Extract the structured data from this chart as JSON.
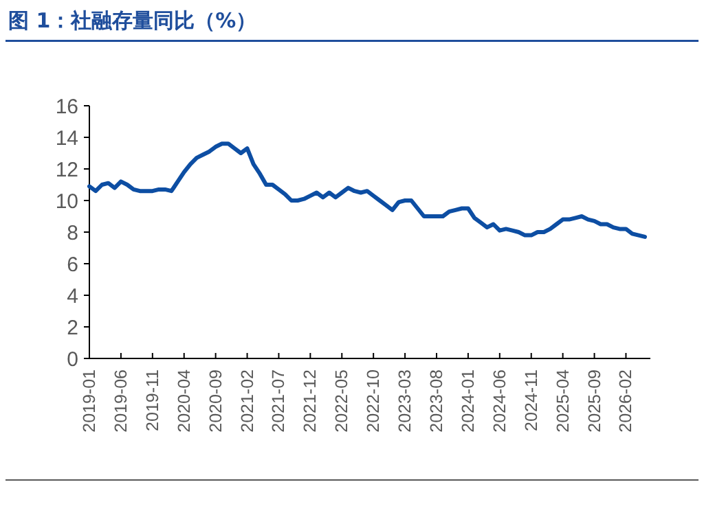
{
  "chart_data": {
    "type": "line",
    "title": "图 1：社融存量同比（%）",
    "categories": [
      "2019-01",
      null,
      null,
      null,
      null,
      "2019-06",
      null,
      null,
      null,
      null,
      "2019-11",
      null,
      null,
      null,
      null,
      "2020-04",
      null,
      null,
      null,
      null,
      "2020-09",
      null,
      null,
      null,
      null,
      "2021-02",
      null,
      null,
      null,
      null,
      "2021-07",
      null,
      null,
      null,
      null,
      "2021-12",
      null,
      null,
      null,
      null,
      "2022-05",
      null,
      null,
      null,
      null,
      "2022-10",
      null,
      null,
      null,
      null,
      "2023-03",
      null,
      null,
      null,
      null,
      "2023-08",
      null,
      null,
      null,
      null,
      "2024-01",
      null,
      null,
      null,
      null,
      "2024-06",
      null,
      null,
      null,
      null,
      "2024-11",
      null,
      null,
      null,
      null,
      "2025-04",
      null,
      null,
      null,
      null,
      "2025-09",
      null,
      null,
      null,
      null,
      "2026-02",
      null,
      null,
      null
    ],
    "values": [
      10.9,
      10.6,
      11.0,
      11.1,
      10.8,
      11.2,
      11.0,
      10.7,
      10.6,
      10.6,
      10.6,
      10.7,
      10.7,
      10.6,
      11.2,
      11.8,
      12.3,
      12.7,
      12.9,
      13.1,
      13.4,
      13.6,
      13.6,
      13.3,
      13.0,
      13.3,
      12.3,
      11.7,
      11.0,
      11.0,
      10.7,
      10.4,
      10.0,
      10.0,
      10.1,
      10.3,
      10.5,
      10.2,
      10.5,
      10.2,
      10.5,
      10.8,
      10.6,
      10.5,
      10.6,
      10.3,
      10.0,
      9.7,
      9.4,
      9.9,
      10.0,
      10.0,
      9.5,
      9.0,
      9.0,
      9.0,
      9.0,
      9.3,
      9.4,
      9.5,
      9.5,
      8.9,
      8.6,
      8.3,
      8.5,
      8.1,
      8.2,
      8.1,
      8.0,
      7.8,
      7.8,
      8.0,
      8.0,
      8.2,
      8.5,
      8.8,
      8.8,
      8.9,
      9.0,
      8.8,
      8.7,
      8.5,
      8.5,
      8.3,
      8.2,
      8.2,
      7.9,
      7.8,
      7.7
    ],
    "color": "#0d4ea3",
    "ylim": [
      0,
      16
    ],
    "yticks": [
      0,
      2,
      4,
      6,
      8,
      10,
      12,
      14,
      16
    ],
    "marker": "none",
    "line_style": "solid",
    "grid": false
  }
}
